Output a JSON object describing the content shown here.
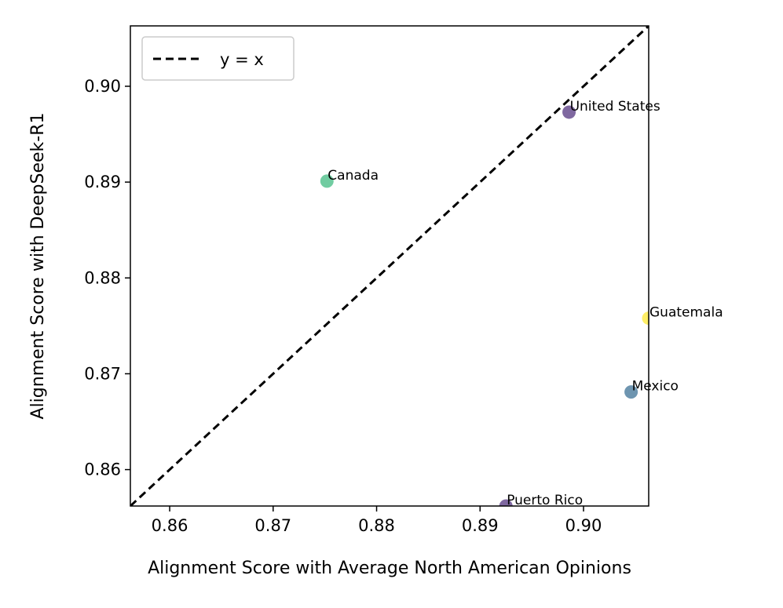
{
  "chart_data": {
    "type": "scatter",
    "xlabel": "Alignment Score with Average North American Opinions",
    "ylabel": "Alignment Score with DeepSeek-R1",
    "xlim": [
      0.8562,
      0.9063
    ],
    "ylim": [
      0.8562,
      0.9063
    ],
    "xticks": [
      "0.86",
      "0.87",
      "0.88",
      "0.89",
      "0.90"
    ],
    "yticks": [
      "0.86",
      "0.87",
      "0.88",
      "0.89",
      "0.90"
    ],
    "xtick_values": [
      0.86,
      0.87,
      0.88,
      0.89,
      0.9
    ],
    "ytick_values": [
      0.86,
      0.87,
      0.88,
      0.89,
      0.9
    ],
    "points": [
      {
        "label": "United States",
        "x": 0.8986,
        "y": 0.8973,
        "color": "#482878"
      },
      {
        "label": "Canada",
        "x": 0.8752,
        "y": 0.8901,
        "color": "#35b779"
      },
      {
        "label": "Guatemala",
        "x": 0.9063,
        "y": 0.8758,
        "color": "#fde725"
      },
      {
        "label": "Mexico",
        "x": 0.9046,
        "y": 0.8681,
        "color": "#31688e"
      },
      {
        "label": "Puerto Rico",
        "x": 0.8925,
        "y": 0.8562,
        "color": "#482878"
      }
    ],
    "reference_line": {
      "label": "y = x",
      "style": "dashed",
      "color": "#000000"
    },
    "legend": {
      "entries": [
        "y = x"
      ],
      "placement": "top-left"
    },
    "grid": false
  }
}
